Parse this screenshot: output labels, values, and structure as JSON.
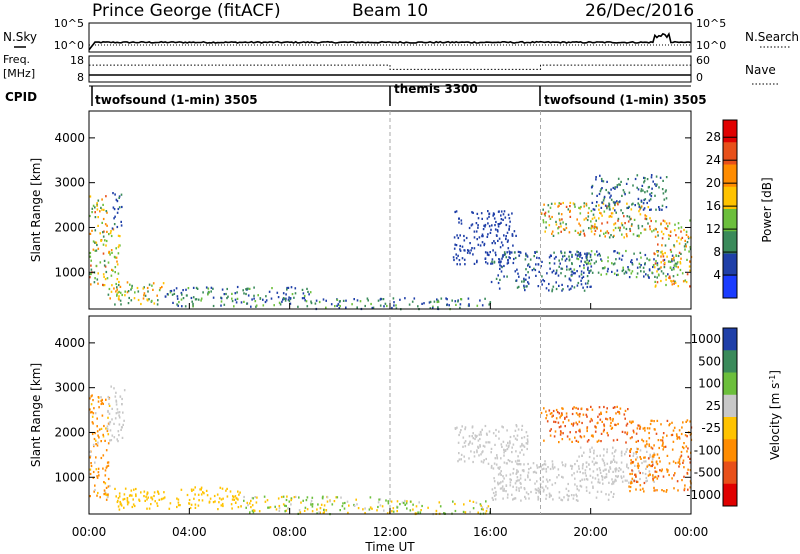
{
  "header": {
    "station": "Prince George (fitACF)",
    "beam": "Beam 10",
    "date": "26/Dec/2016"
  },
  "sky_panel": {
    "left_label": "N.Sky",
    "left_ticks": [
      "10^5",
      "10^0"
    ],
    "right_ticks": [
      "10^5",
      "10^0"
    ],
    "right_label": "N.Search"
  },
  "freq_panel": {
    "left_label_1": "Freq.",
    "left_label_2": "[MHz]",
    "left_ticks": [
      "18",
      "8"
    ],
    "right_ticks": [
      "60",
      "0"
    ],
    "right_label": "Nave"
  },
  "cpid_panel": {
    "label": "CPID",
    "programs": [
      {
        "name": "twofsound (1-min) 3505",
        "start_hour": 0
      },
      {
        "name": "themis 3300",
        "start_hour": 12
      },
      {
        "name": "twofsound (1-min) 3505",
        "start_hour": 18
      }
    ]
  },
  "time_axis": {
    "label": "Time UT",
    "ticks": [
      "00:00",
      "04:00",
      "08:00",
      "12:00",
      "16:00",
      "20:00",
      "00:00"
    ],
    "range_hours": [
      0,
      24
    ]
  },
  "chart_data": [
    {
      "type": "heatmap",
      "panel": "power",
      "ylabel": "Slant Range [km]",
      "ylim": [
        180,
        4600
      ],
      "yticks": [
        "1000",
        "2000",
        "3000",
        "4000"
      ],
      "colorbar_label": "Power [dB]",
      "colorbar_ticks": [
        "4",
        "8",
        "12",
        "16",
        "20",
        "24",
        "28"
      ],
      "colorbar_range": [
        0,
        31
      ],
      "colors": [
        "#1a3cff",
        "#1f3fa8",
        "#3a8a5a",
        "#6cbf3c",
        "#ffc300",
        "#ff8c00",
        "#e8501a",
        "#e00000"
      ],
      "scatter_regions": [
        {
          "t": [
            0.0,
            0.7
          ],
          "r": [
            700,
            2800
          ],
          "v": [
            8,
            26
          ]
        },
        {
          "t": [
            0.7,
            1.2
          ],
          "r": [
            400,
            2000
          ],
          "v": [
            10,
            22
          ]
        },
        {
          "t": [
            0.9,
            1.3
          ],
          "r": [
            2000,
            2900
          ],
          "v": [
            4,
            10
          ]
        },
        {
          "t": [
            1.0,
            3.0
          ],
          "r": [
            300,
            800
          ],
          "v": [
            8,
            24
          ]
        },
        {
          "t": [
            3.0,
            9.0
          ],
          "r": [
            250,
            700
          ],
          "v": [
            4,
            14
          ]
        },
        {
          "t": [
            9.0,
            16.0
          ],
          "r": [
            200,
            450
          ],
          "v": [
            4,
            14
          ]
        },
        {
          "t": [
            14.5,
            17.0
          ],
          "r": [
            1200,
            2400
          ],
          "v": [
            4,
            8
          ]
        },
        {
          "t": [
            16.0,
            20.0
          ],
          "r": [
            600,
            1500
          ],
          "v": [
            4,
            10
          ]
        },
        {
          "t": [
            18.0,
            22.5
          ],
          "r": [
            1800,
            2600
          ],
          "v": [
            8,
            26
          ]
        },
        {
          "t": [
            19.0,
            23.5
          ],
          "r": [
            900,
            1500
          ],
          "v": [
            4,
            14
          ]
        },
        {
          "t": [
            20.0,
            23.0
          ],
          "r": [
            2400,
            3200
          ],
          "v": [
            4,
            12
          ]
        },
        {
          "t": [
            22.5,
            24.0
          ],
          "r": [
            700,
            2200
          ],
          "v": [
            10,
            28
          ]
        }
      ]
    },
    {
      "type": "heatmap",
      "panel": "velocity",
      "ylabel": "Slant Range [km]",
      "ylim": [
        180,
        4600
      ],
      "yticks": [
        "1000",
        "2000",
        "3000",
        "4000"
      ],
      "colorbar_label": "Velocity [m s^-1]",
      "colorbar_ticks": [
        "1000",
        "500",
        "100",
        "25",
        "-25",
        "-100",
        "-500",
        "-1000"
      ],
      "colors": [
        "#1f3fa8",
        "#3a8a5a",
        "#6cbf3c",
        "#c8c8c8",
        "#ffc300",
        "#ff8c00",
        "#e8501a",
        "#e00000"
      ],
      "scatter_regions": [
        {
          "t": [
            0.0,
            0.8
          ],
          "r": [
            500,
            2900
          ],
          "v": [
            -500,
            25
          ]
        },
        {
          "t": [
            0.7,
            1.4
          ],
          "r": [
            1800,
            3100
          ],
          "v": [
            -20,
            20
          ]
        },
        {
          "t": [
            1.0,
            6.0
          ],
          "r": [
            300,
            800
          ],
          "v": [
            -100,
            -25
          ]
        },
        {
          "t": [
            6.0,
            12.0
          ],
          "r": [
            200,
            600
          ],
          "v": [
            -100,
            100
          ]
        },
        {
          "t": [
            12.0,
            16.0
          ],
          "r": [
            200,
            500
          ],
          "v": [
            -100,
            100
          ]
        },
        {
          "t": [
            14.5,
            17.5
          ],
          "r": [
            1300,
            2200
          ],
          "v": [
            -20,
            20
          ]
        },
        {
          "t": [
            16.0,
            21.0
          ],
          "r": [
            500,
            1400
          ],
          "v": [
            -20,
            25
          ]
        },
        {
          "t": [
            18.0,
            21.5
          ],
          "r": [
            1800,
            2600
          ],
          "v": [
            -900,
            -200
          ]
        },
        {
          "t": [
            19.5,
            22.5
          ],
          "r": [
            900,
            1700
          ],
          "v": [
            -20,
            20
          ]
        },
        {
          "t": [
            21.5,
            24.0
          ],
          "r": [
            700,
            2300
          ],
          "v": [
            -600,
            -100
          ]
        }
      ]
    }
  ]
}
